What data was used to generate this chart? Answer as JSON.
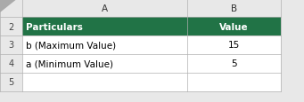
{
  "col_headers": [
    "A",
    "B"
  ],
  "row_numbers": [
    "2",
    "3",
    "4",
    "5"
  ],
  "header_row": [
    "Particulars",
    "Value"
  ],
  "data_rows": [
    [
      "b (Maximum Value)",
      "15"
    ],
    [
      "a (Minimum Value)",
      "5"
    ]
  ],
  "header_bg": "#217346",
  "header_text_color": "#ffffff",
  "cell_bg": "#ffffff",
  "grid_color": "#b0b0b0",
  "row_num_bg": "#e8e8e8",
  "col_header_bg": "#e8e8e8",
  "text_color": "#000000",
  "row_num_color": "#444444",
  "col_header_color": "#333333",
  "fig_bg": "#e8e8e8",
  "font_size": 7.5
}
